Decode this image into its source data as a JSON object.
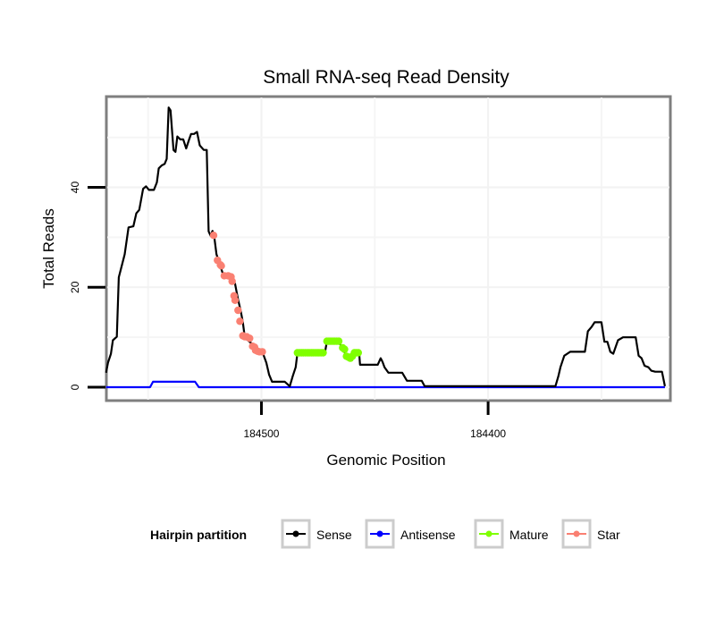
{
  "chart_data": {
    "type": "line",
    "title": "Small RNA-seq Read Density",
    "xlabel": "Genomic Position",
    "ylabel": "Total Reads",
    "x_reversed": true,
    "xlim": [
      184568,
      184320
    ],
    "ylim": [
      -2.5,
      58
    ],
    "x_ticks": [
      184500,
      184400
    ],
    "x_tick_labels": [
      "184500",
      "184400"
    ],
    "y_ticks": [
      0,
      20,
      40
    ],
    "y_tick_labels": [
      "0",
      "20",
      "40"
    ],
    "grid": true,
    "legend": {
      "title": "Hairpin partition",
      "placement": "bottom",
      "entries": [
        {
          "label": "Sense",
          "color": "#000000"
        },
        {
          "label": "Antisense",
          "color": "#0000ff"
        },
        {
          "label": "Mature",
          "color": "#7fff00"
        },
        {
          "label": "Star",
          "color": "#fa8072"
        }
      ]
    },
    "series": [
      {
        "name": "Sense",
        "color": "#000000",
        "style": "line",
        "points": [
          [
            184568.5,
            2.9
          ],
          [
            184567.7,
            4.9
          ],
          [
            184566.4,
            6.7
          ],
          [
            184565.5,
            9.4
          ],
          [
            184563.8,
            10.1
          ],
          [
            184562.9,
            22.0
          ],
          [
            184561.6,
            24.3
          ],
          [
            184560.3,
            26.6
          ],
          [
            184558.6,
            32.0
          ],
          [
            184556.5,
            32.2
          ],
          [
            184555.2,
            34.8
          ],
          [
            184553.9,
            35.5
          ],
          [
            184552.2,
            39.7
          ],
          [
            184550.9,
            40.2
          ],
          [
            184549.6,
            39.5
          ],
          [
            184547.4,
            39.5
          ],
          [
            184546.1,
            41.0
          ],
          [
            184545.3,
            43.8
          ],
          [
            184544.0,
            44.4
          ],
          [
            184542.7,
            44.7
          ],
          [
            184541.8,
            45.7
          ],
          [
            184540.9,
            56.0
          ],
          [
            184540.1,
            55.4
          ],
          [
            184538.8,
            47.5
          ],
          [
            184537.9,
            47.1
          ],
          [
            184537.1,
            50.2
          ],
          [
            184535.8,
            49.6
          ],
          [
            184534.5,
            49.6
          ],
          [
            184533.2,
            47.8
          ],
          [
            184531.9,
            49.6
          ],
          [
            184531.0,
            50.7
          ],
          [
            184529.7,
            50.7
          ],
          [
            184528.4,
            51.1
          ],
          [
            184527.2,
            48.4
          ],
          [
            184525.4,
            47.5
          ],
          [
            184524.1,
            47.5
          ],
          [
            184523.3,
            31.2
          ],
          [
            184522.4,
            30.3
          ],
          [
            184521.6,
            31.3
          ],
          [
            184520.7,
            29.7
          ],
          [
            184519.8,
            26.6
          ],
          [
            184518.5,
            24.8
          ],
          [
            184517.2,
            23.0
          ],
          [
            184515.5,
            22.1
          ],
          [
            184512.9,
            21.7
          ],
          [
            184511.6,
            20.7
          ],
          [
            184510.3,
            17.6
          ],
          [
            184509.1,
            15.2
          ],
          [
            184508.2,
            13.0
          ],
          [
            184507.3,
            9.8
          ],
          [
            184506.0,
            9.4
          ],
          [
            184504.7,
            8.9
          ],
          [
            184503.4,
            8.5
          ],
          [
            184502.6,
            8.0
          ],
          [
            184501.3,
            7.2
          ],
          [
            184499.6,
            7.1
          ],
          [
            184497.8,
            4.9
          ],
          [
            184496.6,
            2.5
          ],
          [
            184495.3,
            1.1
          ],
          [
            184489.7,
            1.1
          ],
          [
            184487.5,
            0.2
          ],
          [
            184486.2,
            2.2
          ],
          [
            184484.9,
            4.0
          ],
          [
            184484.1,
            6.9
          ],
          [
            184481.9,
            6.9
          ],
          [
            184476.7,
            6.9
          ],
          [
            184472.0,
            6.9
          ],
          [
            184471.1,
            9.2
          ],
          [
            184465.9,
            9.2
          ],
          [
            184464.2,
            7.6
          ],
          [
            184462.9,
            6.7
          ],
          [
            184460.8,
            5.8
          ],
          [
            184458.6,
            6.9
          ],
          [
            184456.9,
            6.9
          ],
          [
            184456.5,
            4.5
          ],
          [
            184448.7,
            4.5
          ],
          [
            184447.4,
            5.8
          ],
          [
            184446.6,
            5.1
          ],
          [
            184445.7,
            4.0
          ],
          [
            184444.0,
            2.9
          ],
          [
            184437.9,
            2.9
          ],
          [
            184435.8,
            1.3
          ],
          [
            184429.3,
            1.3
          ],
          [
            184428.0,
            0.2
          ],
          [
            184370.3,
            0.2
          ],
          [
            184369.0,
            2.2
          ],
          [
            184368.1,
            4.0
          ],
          [
            184366.4,
            6.3
          ],
          [
            184363.8,
            7.1
          ],
          [
            184357.3,
            7.1
          ],
          [
            184356.0,
            11.2
          ],
          [
            184354.3,
            12.1
          ],
          [
            184353.0,
            13.0
          ],
          [
            184350.0,
            13.0
          ],
          [
            184348.7,
            9.1
          ],
          [
            184347.4,
            9.1
          ],
          [
            184346.1,
            7.1
          ],
          [
            184344.8,
            6.7
          ],
          [
            184342.7,
            9.4
          ],
          [
            184340.5,
            10.0
          ],
          [
            184334.9,
            10.0
          ],
          [
            184333.6,
            6.3
          ],
          [
            184332.3,
            5.8
          ],
          [
            184331.0,
            4.3
          ],
          [
            184329.3,
            4.0
          ],
          [
            184328.0,
            3.3
          ],
          [
            184326.3,
            3.1
          ],
          [
            184323.3,
            3.1
          ],
          [
            184322.0,
            0.2
          ]
        ]
      },
      {
        "name": "Antisense",
        "color": "#0000ff",
        "style": "line",
        "points": [
          [
            184568.5,
            0
          ],
          [
            184549.1,
            0
          ],
          [
            184547.8,
            1.1
          ],
          [
            184529.3,
            1.1
          ],
          [
            184527.6,
            0
          ],
          [
            184322.0,
            0
          ]
        ]
      },
      {
        "name": "Mature",
        "color": "#7fff00",
        "style": "points",
        "points": [
          [
            184484.1,
            6.9
          ],
          [
            184483.2,
            6.9
          ],
          [
            184482.3,
            6.9
          ],
          [
            184481.5,
            6.9
          ],
          [
            184480.6,
            6.9
          ],
          [
            184479.7,
            6.9
          ],
          [
            184478.9,
            6.9
          ],
          [
            184478.0,
            6.9
          ],
          [
            184477.2,
            6.9
          ],
          [
            184476.3,
            6.9
          ],
          [
            184475.4,
            6.9
          ],
          [
            184474.6,
            6.9
          ],
          [
            184473.7,
            6.9
          ],
          [
            184472.8,
            6.9
          ],
          [
            184471.1,
            9.2
          ],
          [
            184470.2,
            9.2
          ],
          [
            184469.4,
            9.2
          ],
          [
            184468.5,
            9.2
          ],
          [
            184467.7,
            9.2
          ],
          [
            184466.8,
            9.2
          ],
          [
            184465.9,
            9.2
          ],
          [
            184464.2,
            7.9
          ],
          [
            184463.3,
            7.6
          ],
          [
            184462.5,
            6.2
          ],
          [
            184461.6,
            6.0
          ],
          [
            184460.8,
            5.8
          ],
          [
            184459.9,
            6.2
          ],
          [
            184459.0,
            6.9
          ],
          [
            184458.2,
            6.9
          ],
          [
            184457.3,
            6.9
          ]
        ]
      },
      {
        "name": "Star",
        "color": "#fa8072",
        "style": "points",
        "points": [
          [
            184521.1,
            30.4
          ],
          [
            184519.4,
            25.4
          ],
          [
            184518.1,
            24.5
          ],
          [
            184517.7,
            24.3
          ],
          [
            184516.4,
            22.3
          ],
          [
            184514.7,
            22.3
          ],
          [
            184513.4,
            22.1
          ],
          [
            184512.9,
            21.2
          ],
          [
            184512.1,
            18.3
          ],
          [
            184511.6,
            17.4
          ],
          [
            184510.3,
            15.4
          ],
          [
            184509.5,
            13.2
          ],
          [
            184508.2,
            10.3
          ],
          [
            184507.3,
            10.1
          ],
          [
            184506.5,
            10.1
          ],
          [
            184505.2,
            9.8
          ],
          [
            184503.9,
            8.2
          ],
          [
            184503.0,
            8.0
          ],
          [
            184502.6,
            7.4
          ],
          [
            184501.7,
            7.2
          ],
          [
            184500.9,
            7.1
          ],
          [
            184499.6,
            7.1
          ]
        ]
      }
    ]
  }
}
